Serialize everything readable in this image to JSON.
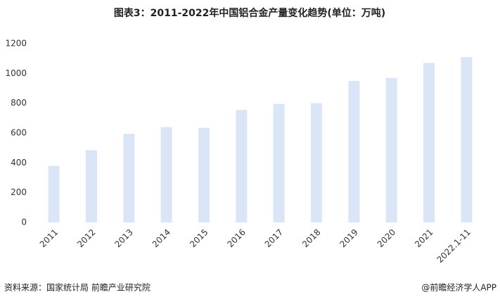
{
  "chart_data": {
    "type": "bar",
    "title": "图表3：2011-2022年中国铝合金产量变化趋势(单位：万吨)",
    "categories": [
      "2011",
      "2012",
      "2013",
      "2014",
      "2015",
      "2016",
      "2017",
      "2018",
      "2019",
      "2020",
      "2021",
      "2022.1-11"
    ],
    "values": [
      380,
      485,
      595,
      640,
      635,
      755,
      795,
      800,
      950,
      970,
      1070,
      1110
    ],
    "color": "#dae6f8",
    "ylim": [
      0,
      1200
    ],
    "yticks": [
      0,
      200,
      400,
      600,
      800,
      1000,
      1200
    ],
    "grid": false
  },
  "footer": {
    "source": "资料来源：国家统计局 前瞻产业研究院",
    "brand": "@前瞻经济学人APP"
  }
}
